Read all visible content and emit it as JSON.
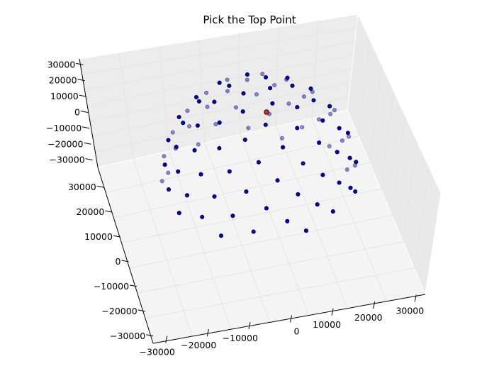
{
  "chart_data": {
    "type": "scatter",
    "projection": "3d",
    "title": "Pick the Top Point",
    "grid": true,
    "colors": {
      "points": "#0000cc",
      "edge": "#000000",
      "selected": "#e8241e",
      "pane": "#f2f2f2",
      "grid": "#e4e4e4"
    },
    "left_axis_ticks": [
      "30000",
      "20000",
      "10000",
      "0",
      "−10000",
      "−20000",
      "−30000"
    ],
    "front_axis_ticks": [
      "30000",
      "20000",
      "10000",
      "0",
      "−10000",
      "−20000",
      "−30000"
    ],
    "bottom_axis_ticks": [
      "−30000",
      "−20000",
      "−10000",
      "0",
      "10000",
      "20000",
      "30000"
    ],
    "point_count": 96,
    "selected_point": "top"
  }
}
